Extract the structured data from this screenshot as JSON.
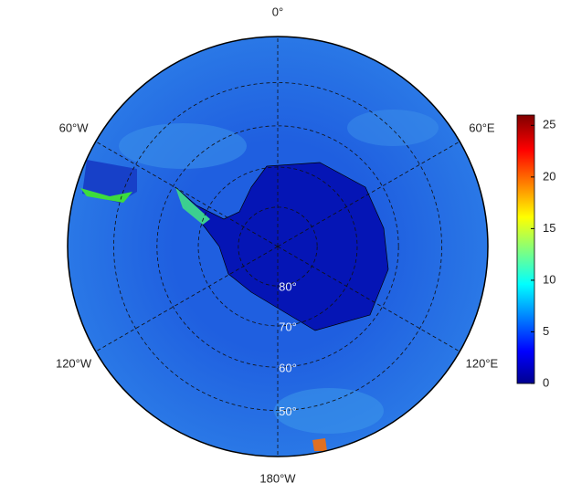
{
  "map": {
    "longitude_labels": [
      {
        "value": 0,
        "label": "0°"
      },
      {
        "value": 60,
        "label": "60°E"
      },
      {
        "value": 120,
        "label": "120°E"
      },
      {
        "value": 180,
        "label": "180°W"
      },
      {
        "value": -120,
        "label": "120°W"
      },
      {
        "value": -60,
        "label": "60°W"
      }
    ],
    "latitude_labels": [
      {
        "value": 80,
        "label": "80°"
      },
      {
        "value": 70,
        "label": "70°"
      },
      {
        "value": 60,
        "label": "60°"
      },
      {
        "value": 50,
        "label": "50°"
      }
    ]
  },
  "colorbar": {
    "lim": [
      0,
      26
    ],
    "ticks": [
      0,
      5,
      10,
      15,
      20,
      25
    ]
  }
}
